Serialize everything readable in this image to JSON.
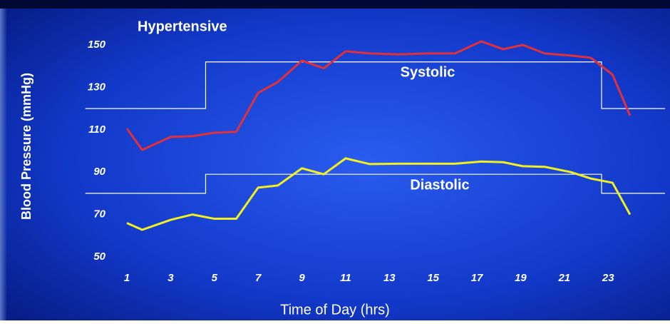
{
  "chart_data": {
    "type": "line",
    "title": "Hypertensive",
    "x_label": "Time of Day (hrs)",
    "y_label": "Blood Pressure (mmHg)",
    "x": [
      1,
      1.7,
      3,
      4,
      5,
      6,
      7,
      7.9,
      9,
      10,
      11,
      12.1,
      13.4,
      14.7,
      16,
      17.2,
      18.2,
      19.1,
      20.1,
      21.3,
      22.2,
      23.2,
      24
    ],
    "series": [
      {
        "name": "Systolic",
        "color": "#e0303a",
        "values": [
          110.6,
          100.5,
          106.6,
          107,
          108.6,
          109,
          127.4,
          132.5,
          142.6,
          139,
          147,
          146,
          145.6,
          146,
          146,
          151.7,
          148,
          150,
          146,
          145,
          144,
          136,
          116.7
        ]
      },
      {
        "name": "Diastolic",
        "color": "#f0f020",
        "values": [
          66,
          62.8,
          67.5,
          70,
          68,
          68,
          82.7,
          83.7,
          91.8,
          89,
          96.5,
          93.8,
          94,
          94,
          94,
          95,
          94.7,
          92.8,
          92.5,
          90,
          87,
          85,
          70
        ]
      }
    ],
    "thresholds": {
      "color": "#ffffff",
      "x": [
        -0.9,
        4.6,
        4.6,
        22.7,
        22.7,
        25.6
      ],
      "systolic": [
        120,
        120,
        142,
        142,
        120,
        120
      ],
      "diastolic": [
        80,
        80,
        89,
        89,
        80,
        80
      ]
    },
    "xlim": [
      -0.9,
      25.6
    ],
    "xticks": [
      1,
      3,
      5,
      7,
      9,
      11,
      13,
      15,
      17,
      19,
      21,
      23
    ],
    "ylim": [
      50,
      150
    ],
    "yticks": [
      50,
      70,
      90,
      110,
      130,
      150
    ]
  }
}
